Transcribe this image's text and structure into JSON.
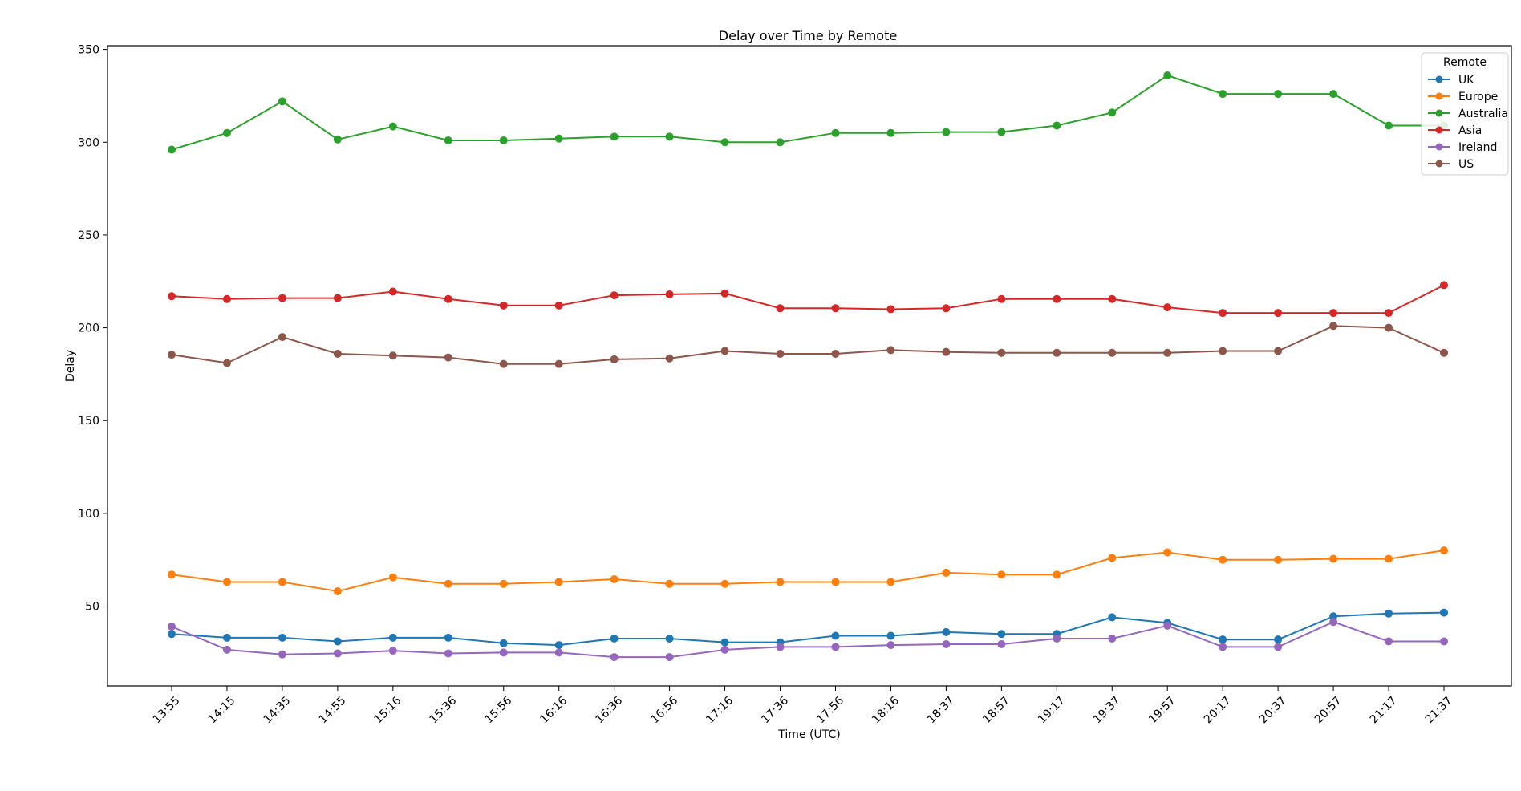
{
  "chart_data": {
    "type": "line",
    "title": "Delay over Time by Remote",
    "xlabel": "Time (UTC)",
    "ylabel": "Delay",
    "x": [
      "13:55",
      "14:15",
      "14:35",
      "14:55",
      "15:16",
      "15:36",
      "15:56",
      "16:16",
      "16:36",
      "16:56",
      "17:16",
      "17:36",
      "17:56",
      "18:16",
      "18:37",
      "18:57",
      "19:17",
      "19:37",
      "19:57",
      "20:17",
      "20:37",
      "20:57",
      "21:17",
      "21:37"
    ],
    "ylim": [
      7,
      352
    ],
    "yticks": [
      50,
      100,
      150,
      200,
      250,
      300,
      350
    ],
    "grid": false,
    "legend": {
      "title": "Remote",
      "placement": "top-right"
    },
    "series": [
      {
        "name": "UK",
        "color": "#1f77b4",
        "values": [
          35,
          33,
          33,
          31,
          33,
          33,
          30,
          29,
          32.5,
          32.5,
          30.5,
          30.5,
          34,
          34,
          36,
          35,
          35,
          44,
          41,
          32,
          32,
          44.5,
          46,
          46.5
        ]
      },
      {
        "name": "Europe",
        "color": "#ff7f0e",
        "values": [
          67,
          63,
          63,
          58,
          65.5,
          62,
          62,
          63,
          64.5,
          62,
          62,
          63,
          63,
          63,
          68,
          67,
          67,
          76,
          79,
          75,
          75,
          75.5,
          75.5,
          80
        ]
      },
      {
        "name": "Australia",
        "color": "#2ca02c",
        "values": [
          296,
          305,
          322,
          301.5,
          308.5,
          301,
          301,
          302,
          303,
          303,
          300,
          300,
          305,
          305,
          305.5,
          305.5,
          309,
          316,
          336,
          326,
          326,
          326,
          309,
          309
        ]
      },
      {
        "name": "Asia",
        "color": "#d62728",
        "values": [
          217,
          215.5,
          216,
          216,
          219.5,
          215.5,
          212,
          212,
          217.5,
          218,
          218.5,
          210.5,
          210.5,
          210,
          210.5,
          215.5,
          215.5,
          215.5,
          211,
          208,
          208,
          208,
          208,
          223
        ]
      },
      {
        "name": "Ireland",
        "color": "#9467bd",
        "values": [
          39,
          26.5,
          24,
          24.5,
          26,
          24.5,
          25,
          25,
          22.5,
          22.5,
          26.5,
          28,
          28,
          29,
          29.5,
          29.5,
          32.5,
          32.5,
          39.5,
          28,
          28,
          41.5,
          31,
          31
        ]
      },
      {
        "name": "US",
        "color": "#8c564b",
        "values": [
          185.5,
          181,
          195,
          186,
          185,
          184,
          180.5,
          180.5,
          183,
          183.5,
          187.5,
          186,
          186,
          188,
          187,
          186.5,
          186.5,
          186.5,
          186.5,
          187.5,
          187.5,
          201,
          200,
          186.5
        ]
      }
    ]
  }
}
